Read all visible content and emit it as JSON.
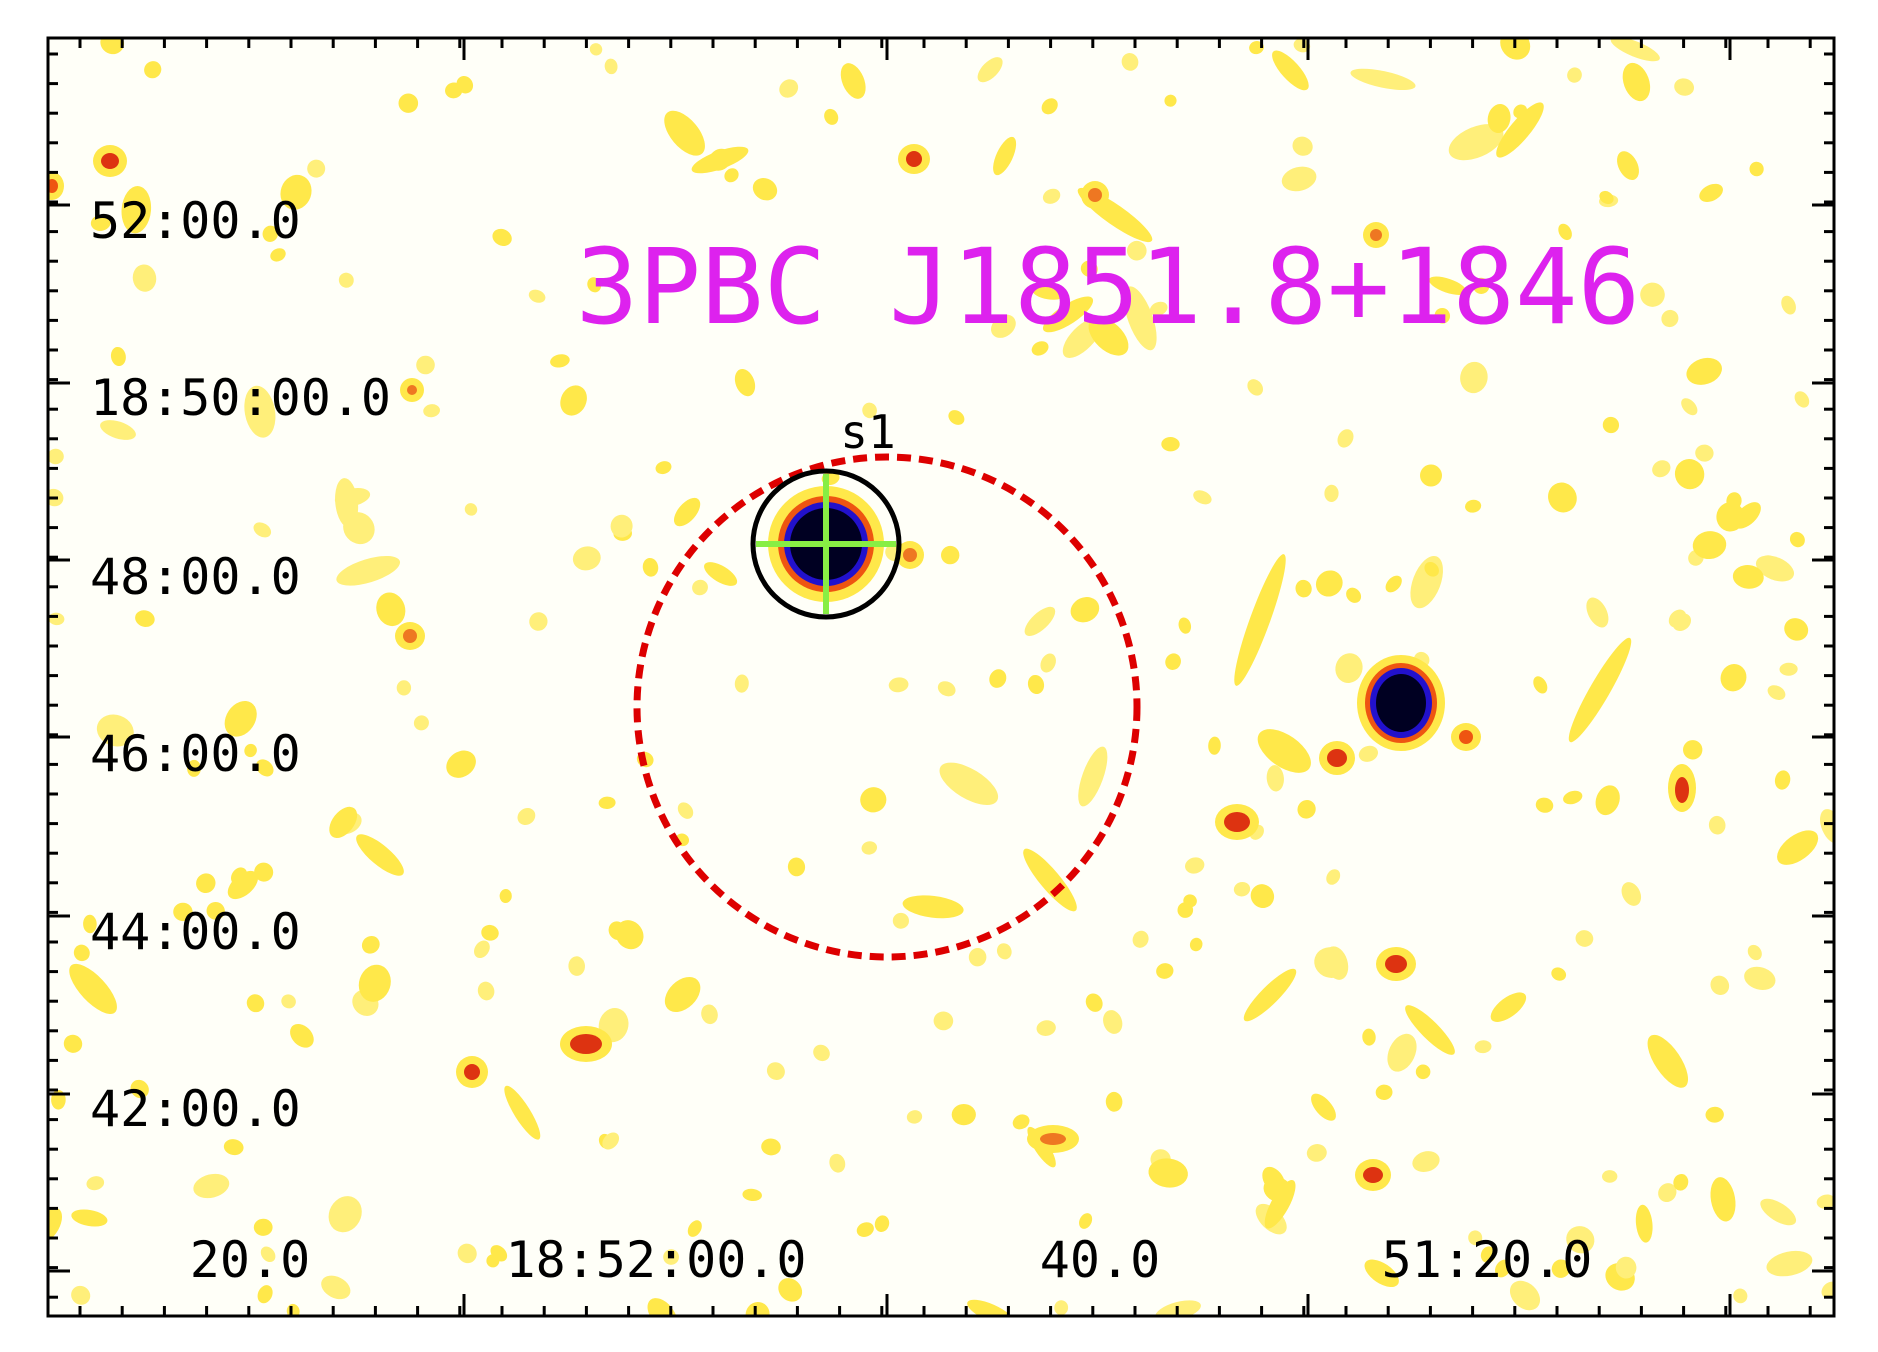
{
  "figure": {
    "title": "3PBC J1851.8+1846",
    "source_label": "s1",
    "y_ticks": [
      "52:00.0",
      "18:50:00.0",
      "48:00.0",
      "46:00.0",
      "44:00.0",
      "42:00.0"
    ],
    "x_ticks": [
      "20.0",
      "18:52:00.0",
      "40.0",
      "51:20.0"
    ]
  },
  "colors": {
    "title": "#dd22ee",
    "uncertainty_circle": "#dd0000",
    "source_circle": "#000000",
    "crosshair": "#88ee44",
    "frame": "#000000",
    "background": "#fffff8",
    "blob_faint": "#ffe84a",
    "blob_mid": "#ee5511",
    "blob_core": "#000022",
    "blob_ring": "#2211cc"
  }
}
